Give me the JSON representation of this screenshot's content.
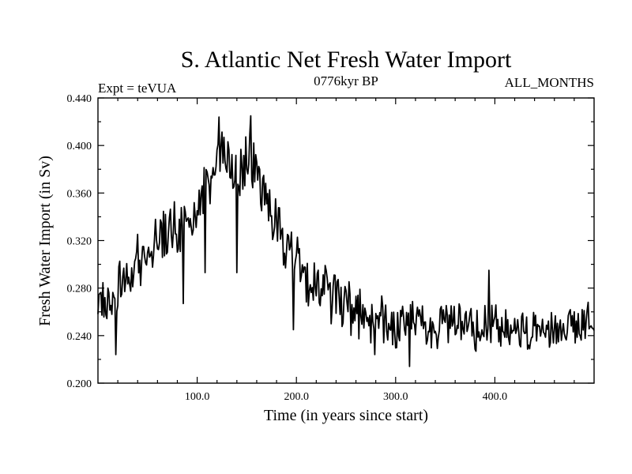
{
  "chart_data": {
    "type": "line",
    "title": "S. Atlantic Net Fresh Water Import",
    "subtitle_left": "Expt = teVUA",
    "subtitle_center": "0776kyr BP",
    "subtitle_right": "ALL_MONTHS",
    "xlabel": "Time (in years since start)",
    "ylabel": "Fresh Water Import (in Sv)",
    "xlim": [
      0,
      500
    ],
    "ylim": [
      0.2,
      0.44
    ],
    "x_ticks": [
      100,
      200,
      300,
      400
    ],
    "x_tick_labels": [
      "100.0",
      "200.0",
      "300.0",
      "400.0"
    ],
    "y_ticks": [
      0.2,
      0.24,
      0.28,
      0.32,
      0.36,
      0.4,
      0.44
    ],
    "y_tick_labels": [
      "0.200",
      "0.240",
      "0.280",
      "0.320",
      "0.360",
      "0.400",
      "0.440"
    ],
    "grid": false,
    "series": [
      {
        "name": "fresh water import",
        "x_start": 0,
        "x_step": 5,
        "values": [
          0.271,
          0.27,
          0.262,
          0.259,
          0.276,
          0.285,
          0.282,
          0.292,
          0.309,
          0.298,
          0.315,
          0.318,
          0.326,
          0.323,
          0.331,
          0.336,
          0.326,
          0.33,
          0.334,
          0.331,
          0.345,
          0.358,
          0.365,
          0.372,
          0.383,
          0.389,
          0.395,
          0.389,
          0.379,
          0.378,
          0.39,
          0.383,
          0.374,
          0.364,
          0.352,
          0.343,
          0.335,
          0.325,
          0.315,
          0.308,
          0.302,
          0.297,
          0.291,
          0.285,
          0.281,
          0.278,
          0.275,
          0.27,
          0.266,
          0.264,
          0.262,
          0.26,
          0.258,
          0.256,
          0.255,
          0.253,
          0.252,
          0.251,
          0.252,
          0.25,
          0.249,
          0.25,
          0.252,
          0.253,
          0.252,
          0.251,
          0.248,
          0.246,
          0.247,
          0.25,
          0.253,
          0.252,
          0.251,
          0.25,
          0.249,
          0.249,
          0.247,
          0.245,
          0.246,
          0.248,
          0.247,
          0.248,
          0.249,
          0.248,
          0.247,
          0.245,
          0.244,
          0.243,
          0.245,
          0.246,
          0.244,
          0.243,
          0.244,
          0.246,
          0.245,
          0.246,
          0.248,
          0.25,
          0.251,
          0.25,
          0.251
        ]
      }
    ],
    "spikes": [
      {
        "x": 18,
        "y": 0.224
      },
      {
        "x": 86,
        "y": 0.267
      },
      {
        "x": 108,
        "y": 0.293
      },
      {
        "x": 122,
        "y": 0.424
      },
      {
        "x": 140,
        "y": 0.293
      },
      {
        "x": 154,
        "y": 0.425
      },
      {
        "x": 197,
        "y": 0.245
      },
      {
        "x": 279,
        "y": 0.224
      },
      {
        "x": 314,
        "y": 0.214
      },
      {
        "x": 394,
        "y": 0.295
      }
    ]
  }
}
